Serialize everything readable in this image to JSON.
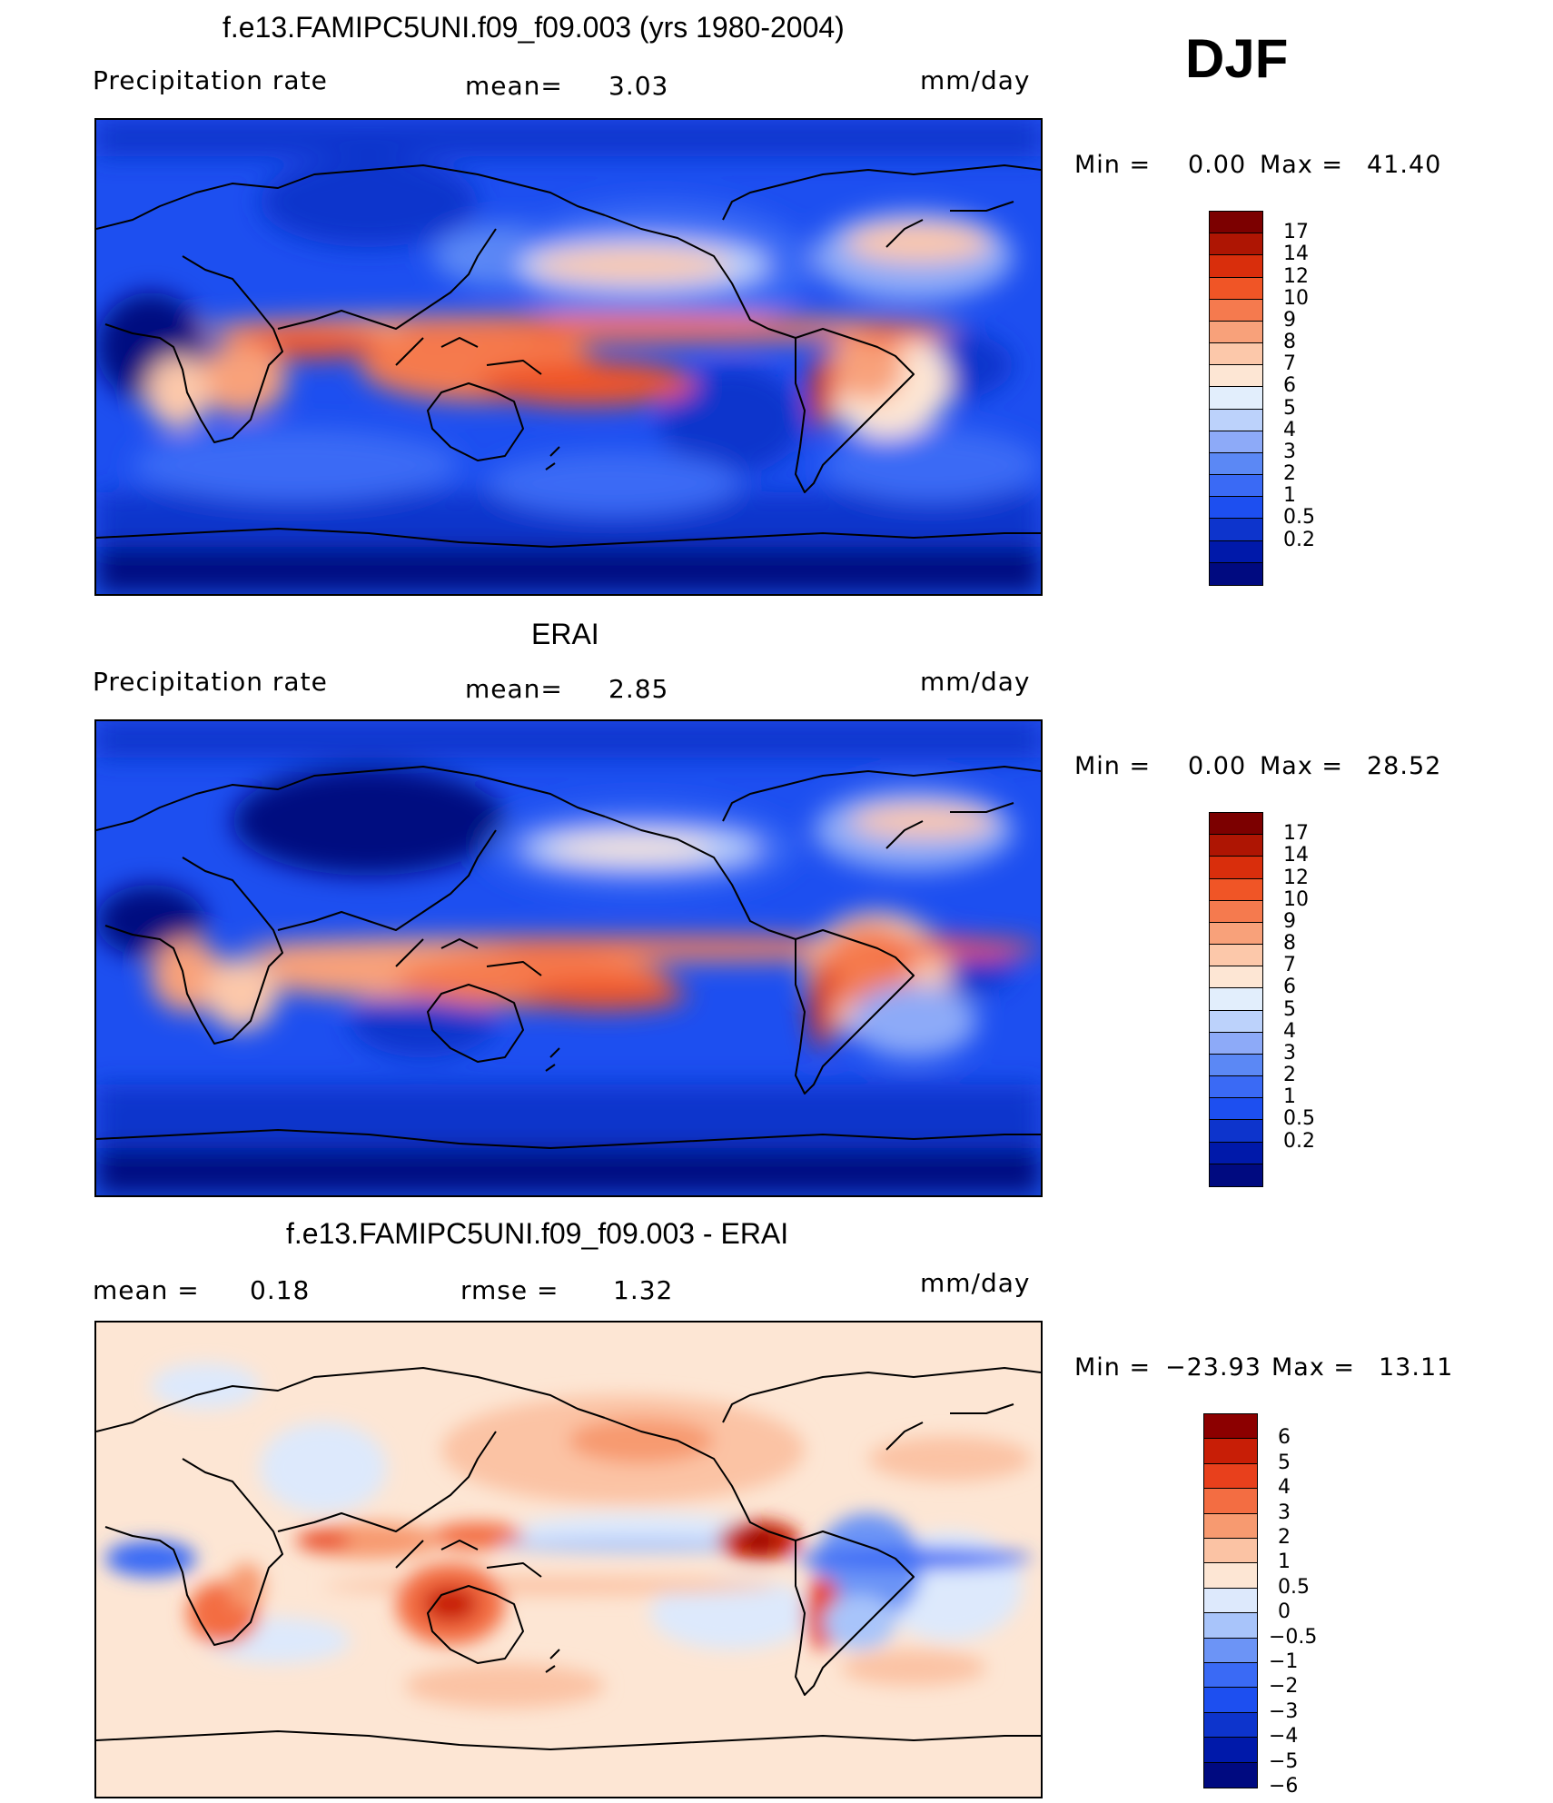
{
  "season": "DJF",
  "colors": {
    "precip": [
      "#000a80",
      "#0019aa",
      "#0d34cc",
      "#1d4ff0",
      "#3a6af5",
      "#5b88f5",
      "#8daaf8",
      "#bcd2fb",
      "#e2eefc",
      "#fde6d4",
      "#fcc8aa",
      "#f8a17a",
      "#f57a4e",
      "#f05526",
      "#d92e0c",
      "#ae1503",
      "#7c0000"
    ],
    "diff": [
      "#000a80",
      "#0019aa",
      "#0d34cc",
      "#1d4ff0",
      "#3a6af5",
      "#6c94f6",
      "#a8c4fa",
      "#dde9fc",
      "#fde6d4",
      "#fbc3a4",
      "#f79a70",
      "#f36d42",
      "#e8401c",
      "#c81e06",
      "#8c0000"
    ]
  },
  "panels": [
    {
      "title": "f.e13.FAMIPC5UNI.f09_f09.003 (yrs 1980-2004)",
      "left_label": "Precipitation rate",
      "stat1_label": "mean=",
      "stat1_value": "3.03",
      "stat2_label": "",
      "stat2_value": "",
      "units": "mm/day",
      "min_label": "Min  =",
      "min_value": "0.00",
      "max_label": "Max  =",
      "max_value": "41.40",
      "cbar_ticks": [
        "17",
        "14",
        "12",
        "10",
        "9",
        "8",
        "7",
        "6",
        "5",
        "4",
        "3",
        "2",
        "1",
        "0.5",
        "0.2"
      ]
    },
    {
      "title": "ERAI",
      "left_label": "Precipitation rate",
      "stat1_label": "mean=",
      "stat1_value": "2.85",
      "stat2_label": "",
      "stat2_value": "",
      "units": "mm/day",
      "min_label": "Min  =",
      "min_value": "0.00",
      "max_label": "Max  =",
      "max_value": "28.52",
      "cbar_ticks": [
        "17",
        "14",
        "12",
        "10",
        "9",
        "8",
        "7",
        "6",
        "5",
        "4",
        "3",
        "2",
        "1",
        "0.5",
        "0.2"
      ]
    },
    {
      "title": "f.e13.FAMIPC5UNI.f09_f09.003 - ERAI",
      "left_label": "",
      "stat1_label": "mean  =",
      "stat1_value": "0.18",
      "stat2_label": "rmse  =",
      "stat2_value": "1.32",
      "units": "mm/day",
      "min_label": "Min  =",
      "min_value": "−23.93",
      "max_label": "Max  =",
      "max_value": "13.11",
      "cbar_ticks": [
        "6",
        "5",
        "4",
        "3",
        "2",
        "1",
        "0.5",
        "0",
        "−0.5",
        "−1",
        "−2",
        "−3",
        "−4",
        "−5",
        "−6"
      ]
    }
  ]
}
